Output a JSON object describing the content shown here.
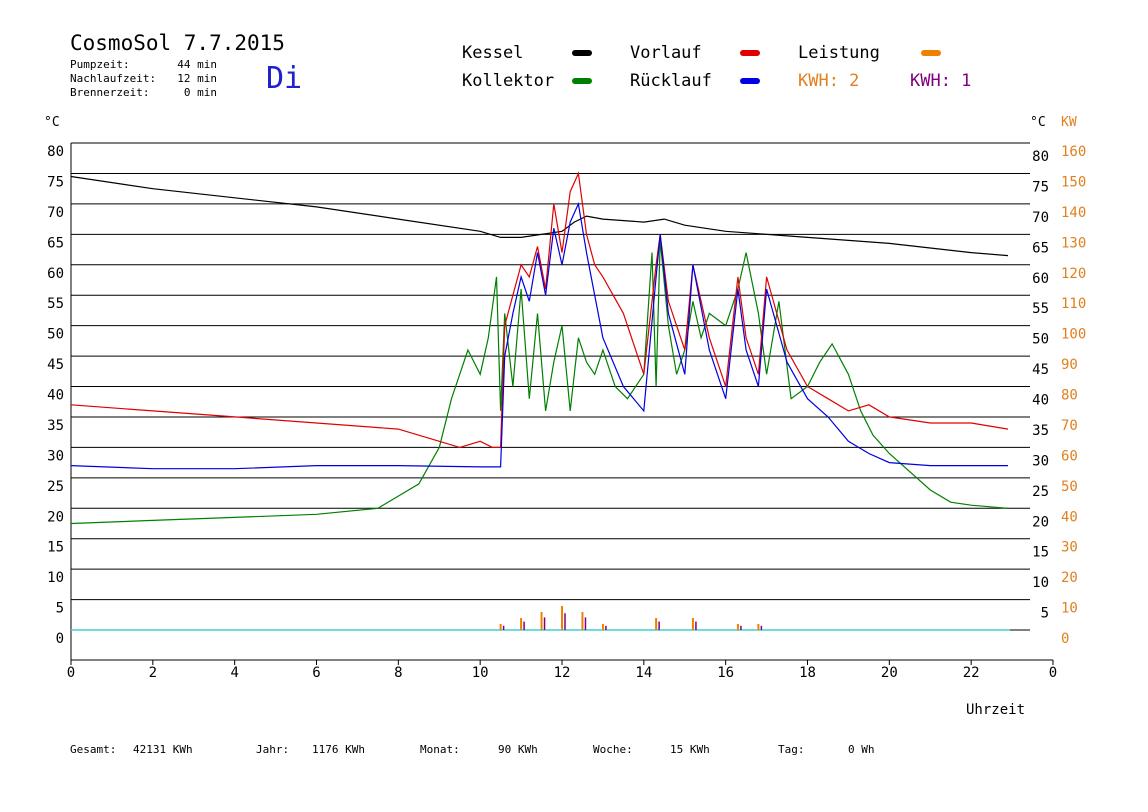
{
  "header": {
    "title": "CosmoSol 7.7.2015",
    "day": "Di",
    "info": [
      {
        "label": "Pumpzeit:",
        "value": "44 min"
      },
      {
        "label": "Nachlaufzeit:",
        "value": "12 min"
      },
      {
        "label": "Brennerzeit:",
        "value": "0 min"
      }
    ]
  },
  "legend": [
    {
      "label": "Kessel",
      "color": "#000000"
    },
    {
      "label": "Kollektor",
      "color": "#008000"
    },
    {
      "label": "Vorlauf",
      "color": "#e00000"
    },
    {
      "label": "Rücklauf",
      "color": "#0000e0"
    },
    {
      "label": "Leistung",
      "color": "#f08000"
    }
  ],
  "kwh_labels": [
    {
      "label": "KWH: 2",
      "color": "#e08020"
    },
    {
      "label": "KWH: 1",
      "color": "#800080"
    }
  ],
  "axes": {
    "left_unit": "°C",
    "right_unit": "°C",
    "right_unit2": "KW",
    "x_label": "Uhrzeit",
    "y_ticks_left": [
      "80",
      "75",
      "70",
      "65",
      "60",
      "55",
      "50",
      "45",
      "40",
      "35",
      "30",
      "25",
      "20",
      "15",
      "10",
      "5",
      "0"
    ],
    "y_ticks_right": [
      "80",
      "75",
      "70",
      "65",
      "60",
      "55",
      "45",
      "40",
      "35",
      "30",
      "25",
      "20",
      "15",
      "10",
      "5"
    ],
    "kw_ticks": [
      "160",
      "150",
      "140",
      "130",
      "120",
      "110",
      "100",
      "90",
      "80",
      "70",
      "60",
      "50",
      "40",
      "30",
      "20",
      "10",
      "0"
    ],
    "x_ticks": [
      "0",
      "2",
      "4",
      "6",
      "8",
      "10",
      "12",
      "14",
      "16",
      "18",
      "20",
      "22",
      "0"
    ]
  },
  "footer": [
    {
      "label": "Gesamt:",
      "value": "42131 KWh"
    },
    {
      "label": "Jahr:",
      "value": "1176 KWh"
    },
    {
      "label": "Monat:",
      "value": "90 KWh"
    },
    {
      "label": "Woche:",
      "value": "15 KWh"
    },
    {
      "label": "Tag:",
      "value": "0 Wh"
    }
  ],
  "colors": {
    "kessel": "#000000",
    "kollektor": "#008000",
    "vorlauf": "#e00000",
    "ruecklauf": "#0000e0",
    "leistung": "#f08000",
    "kwh2": "#e08020",
    "kwh1": "#800080",
    "baseline": "#40d0d0",
    "day": "#2020d0"
  },
  "chart_data": {
    "type": "line",
    "xlabel": "Uhrzeit",
    "ylabel": "°C",
    "xlim": [
      0,
      24
    ],
    "ylim": [
      0,
      85
    ],
    "series": [
      {
        "name": "Kessel",
        "x": [
          0,
          2,
          4,
          6,
          8,
          10,
          10.5,
          11,
          12,
          12.3,
          12.6,
          13,
          14,
          14.5,
          15,
          16,
          18,
          20,
          22,
          22.9
        ],
        "y": [
          74.5,
          72.5,
          71,
          69.5,
          67.5,
          65.5,
          64.5,
          64.5,
          65.5,
          67,
          68,
          67.5,
          67,
          67.5,
          66.5,
          65.5,
          64.5,
          63.5,
          62,
          61.5
        ]
      },
      {
        "name": "Kollektor",
        "x": [
          0,
          2,
          4,
          6,
          7.5,
          8,
          8.5,
          9,
          9.3,
          9.7,
          10,
          10.2,
          10.4,
          10.5,
          10.6,
          10.8,
          11,
          11.2,
          11.4,
          11.6,
          11.8,
          12,
          12.2,
          12.4,
          12.6,
          12.8,
          13,
          13.3,
          13.6,
          14,
          14.2,
          14.3,
          14.4,
          14.6,
          14.8,
          15,
          15.2,
          15.4,
          15.6,
          16,
          16.3,
          16.5,
          16.8,
          17,
          17.3,
          17.6,
          18,
          18.3,
          18.6,
          19,
          19.3,
          19.6,
          20,
          20.5,
          21,
          21.5,
          22,
          22.9
        ],
        "y": [
          17.5,
          18,
          18.5,
          19,
          20,
          22,
          24,
          30,
          38,
          46,
          42,
          48,
          58,
          36,
          52,
          40,
          56,
          38,
          52,
          36,
          44,
          50,
          36,
          48,
          44,
          42,
          46,
          40,
          38,
          42,
          62,
          40,
          64,
          50,
          42,
          46,
          54,
          48,
          52,
          50,
          56,
          62,
          52,
          42,
          54,
          38,
          40,
          44,
          47,
          42,
          36,
          32,
          29,
          26,
          23,
          21,
          20.5,
          20
        ]
      },
      {
        "name": "Vorlauf",
        "x": [
          0,
          2,
          4,
          6,
          8,
          9,
          9.5,
          10,
          10.3,
          10.5,
          10.6,
          10.8,
          11,
          11.2,
          11.4,
          11.6,
          11.8,
          12,
          12.2,
          12.4,
          12.6,
          12.8,
          13,
          13.5,
          14,
          14.3,
          14.4,
          14.6,
          15,
          15.2,
          15.6,
          16,
          16.3,
          16.5,
          16.8,
          17,
          17.5,
          18,
          18.5,
          19,
          19.5,
          20,
          21,
          22,
          22.9
        ],
        "y": [
          37,
          36,
          35,
          34,
          33,
          31,
          30,
          31,
          30,
          30,
          50,
          55,
          60,
          58,
          63,
          56,
          70,
          62,
          72,
          75,
          65,
          60,
          58,
          52,
          42,
          60,
          65,
          54,
          46,
          60,
          48,
          40,
          58,
          48,
          42,
          58,
          46,
          40,
          38,
          36,
          37,
          35,
          34,
          34,
          33
        ]
      },
      {
        "name": "Rücklauf",
        "x": [
          0,
          2,
          4,
          6,
          8,
          10,
          10.5,
          10.6,
          10.8,
          11,
          11.2,
          11.4,
          11.6,
          11.8,
          12,
          12.2,
          12.4,
          12.6,
          12.8,
          13,
          13.5,
          14,
          14.3,
          14.4,
          14.6,
          15,
          15.2,
          15.6,
          16,
          16.3,
          16.5,
          16.8,
          17,
          17.5,
          18,
          18.5,
          19,
          19.5,
          20,
          21,
          22,
          22.9
        ],
        "y": [
          27,
          26.5,
          26.5,
          27,
          27,
          26.8,
          26.8,
          45,
          52,
          58,
          54,
          62,
          55,
          66,
          60,
          67,
          70,
          62,
          55,
          48,
          40,
          36,
          58,
          65,
          52,
          42,
          60,
          46,
          38,
          56,
          46,
          40,
          56,
          44,
          38,
          35,
          31,
          29,
          27.5,
          27,
          27,
          27
        ]
      },
      {
        "name": "Leistung",
        "x": [
          10.5,
          11,
          11.5,
          12,
          12.5,
          13,
          14.3,
          15.2,
          16.3,
          16.8
        ],
        "y": [
          1,
          2,
          3,
          4,
          3,
          1,
          2,
          2,
          1,
          1
        ]
      }
    ]
  }
}
